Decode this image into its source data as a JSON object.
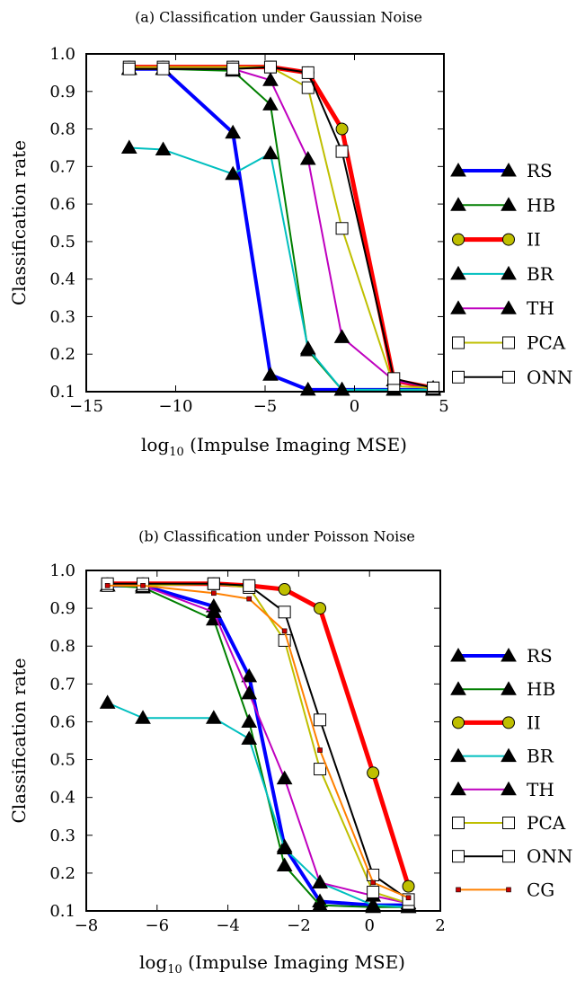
{
  "chart_data": [
    {
      "type": "line",
      "title": "(a) Classification under Gaussian Noise",
      "xlabel": "log10 (Impulse Imaging MSE)",
      "xlabel_main": "log",
      "xlabel_sub": "10",
      "xlabel_rest": " (Impulse Imaging MSE)",
      "ylabel": "Classification rate",
      "xlim": [
        -15,
        5
      ],
      "ylim": [
        0.1,
        1.0
      ],
      "xticks": [
        -15,
        -10,
        -5,
        0,
        5
      ],
      "yticks": [
        0.1,
        0.2,
        0.3,
        0.4,
        0.5,
        0.6,
        0.7,
        0.8,
        0.9,
        1.0
      ],
      "grid": false,
      "legend_position": "outside-right",
      "series": [
        {
          "name": "RS",
          "color": "#0000ff",
          "width": 4,
          "marker": "triangle",
          "x": [
            -12.6,
            -10.7,
            -6.8,
            -4.7,
            -2.6,
            -0.7,
            2.2,
            4.4
          ],
          "y": [
            0.96,
            0.96,
            0.79,
            0.145,
            0.105,
            0.105,
            0.105,
            0.105
          ]
        },
        {
          "name": "HB",
          "color": "#007f00",
          "width": 2,
          "marker": "triangle",
          "x": [
            -12.6,
            -10.7,
            -6.8,
            -4.7,
            -2.6,
            -0.7,
            2.2,
            4.4
          ],
          "y": [
            0.96,
            0.96,
            0.955,
            0.865,
            0.21,
            0.105,
            0.105,
            0.105
          ]
        },
        {
          "name": "II",
          "color": "#ff0000",
          "width": 5,
          "marker": "circle",
          "marker_fill": "#bfbf00",
          "x": [
            -12.6,
            -10.7,
            -6.8,
            -4.7,
            -2.6,
            -0.7,
            2.2,
            4.4
          ],
          "y": [
            0.965,
            0.965,
            0.965,
            0.965,
            0.95,
            0.8,
            0.13,
            0.11
          ]
        },
        {
          "name": "BR",
          "color": "#00bfbf",
          "width": 2,
          "marker": "triangle",
          "x": [
            -12.6,
            -10.7,
            -6.8,
            -4.7,
            -2.6,
            -0.7,
            2.2,
            4.4
          ],
          "y": [
            0.75,
            0.745,
            0.68,
            0.735,
            0.215,
            0.105,
            0.105,
            0.105
          ]
        },
        {
          "name": "TH",
          "color": "#bf00bf",
          "width": 2,
          "marker": "triangle",
          "x": [
            -12.6,
            -10.7,
            -6.8,
            -4.7,
            -2.6,
            -0.7,
            2.2,
            4.4
          ],
          "y": [
            0.96,
            0.96,
            0.96,
            0.93,
            0.72,
            0.245,
            0.13,
            0.11
          ]
        },
        {
          "name": "PCA",
          "color": "#bfbf00",
          "width": 2,
          "marker": "square",
          "x": [
            -12.6,
            -10.7,
            -6.8,
            -4.7,
            -2.6,
            -0.7,
            2.2,
            4.4
          ],
          "y": [
            0.965,
            0.965,
            0.965,
            0.965,
            0.91,
            0.535,
            0.115,
            0.11
          ]
        },
        {
          "name": "ONN",
          "color": "#000000",
          "width": 2,
          "marker": "square",
          "x": [
            -12.6,
            -10.7,
            -6.8,
            -4.7,
            -2.6,
            -0.7,
            2.2,
            4.4
          ],
          "y": [
            0.96,
            0.96,
            0.96,
            0.965,
            0.95,
            0.74,
            0.135,
            0.11
          ]
        }
      ]
    },
    {
      "type": "line",
      "title": "(b) Classification under Poisson Noise",
      "xlabel": "log10 (Impulse Imaging MSE)",
      "xlabel_main": "log",
      "xlabel_sub": "10",
      "xlabel_rest": " (Impulse Imaging MSE)",
      "ylabel": "Classification rate",
      "xlim": [
        -8,
        2
      ],
      "ylim": [
        0.1,
        1.0
      ],
      "xticks": [
        -8,
        -6,
        -4,
        -2,
        0,
        2
      ],
      "yticks": [
        0.1,
        0.2,
        0.3,
        0.4,
        0.5,
        0.6,
        0.7,
        0.8,
        0.9,
        1.0
      ],
      "grid": false,
      "legend_position": "outside-right",
      "series": [
        {
          "name": "RS",
          "color": "#0000ff",
          "width": 4,
          "marker": "triangle",
          "x": [
            -7.4,
            -6.4,
            -4.4,
            -3.4,
            -2.4,
            -1.4,
            0.1,
            1.1
          ],
          "y": [
            0.96,
            0.96,
            0.905,
            0.72,
            0.27,
            0.125,
            0.115,
            0.115
          ]
        },
        {
          "name": "HB",
          "color": "#007f00",
          "width": 2,
          "marker": "triangle",
          "x": [
            -7.4,
            -6.4,
            -4.4,
            -3.4,
            -2.4,
            -1.4,
            0.1,
            1.1
          ],
          "y": [
            0.96,
            0.955,
            0.87,
            0.6,
            0.22,
            0.115,
            0.11,
            0.11
          ]
        },
        {
          "name": "II",
          "color": "#ff0000",
          "width": 5,
          "marker": "circle",
          "marker_fill": "#bfbf00",
          "x": [
            -7.4,
            -6.4,
            -4.4,
            -3.4,
            -2.4,
            -1.4,
            0.1,
            1.1
          ],
          "y": [
            0.965,
            0.965,
            0.965,
            0.96,
            0.95,
            0.9,
            0.465,
            0.165
          ]
        },
        {
          "name": "BR",
          "color": "#00bfbf",
          "width": 2,
          "marker": "triangle",
          "x": [
            -7.4,
            -6.4,
            -4.4,
            -3.4,
            -2.4,
            -1.4,
            0.1,
            1.1
          ],
          "y": [
            0.65,
            0.61,
            0.61,
            0.555,
            0.265,
            0.175,
            0.115,
            0.11
          ]
        },
        {
          "name": "TH",
          "color": "#bf00bf",
          "width": 2,
          "marker": "triangle",
          "x": [
            -7.4,
            -6.4,
            -4.4,
            -3.4,
            -2.4,
            -1.4,
            0.1,
            1.1
          ],
          "y": [
            0.96,
            0.96,
            0.89,
            0.675,
            0.45,
            0.175,
            0.14,
            0.12
          ]
        },
        {
          "name": "PCA",
          "color": "#bfbf00",
          "width": 2,
          "marker": "square",
          "x": [
            -7.4,
            -6.4,
            -4.4,
            -3.4,
            -2.4,
            -1.4,
            0.1,
            1.1
          ],
          "y": [
            0.96,
            0.96,
            0.965,
            0.955,
            0.815,
            0.475,
            0.15,
            0.12
          ]
        },
        {
          "name": "ONN",
          "color": "#000000",
          "width": 2,
          "marker": "square",
          "x": [
            -7.4,
            -6.4,
            -4.4,
            -3.4,
            -2.4,
            -1.4,
            0.1,
            1.1
          ],
          "y": [
            0.965,
            0.965,
            0.965,
            0.96,
            0.89,
            0.605,
            0.195,
            0.13
          ]
        },
        {
          "name": "CG",
          "color": "#ff8000",
          "width": 2,
          "marker": "smallsquare",
          "marker_fill": "#cc0000",
          "x": [
            -7.4,
            -6.4,
            -4.4,
            -3.4,
            -2.4,
            -1.4,
            0.1,
            1.1
          ],
          "y": [
            0.96,
            0.96,
            0.94,
            0.925,
            0.84,
            0.525,
            0.175,
            0.135
          ]
        }
      ]
    }
  ]
}
